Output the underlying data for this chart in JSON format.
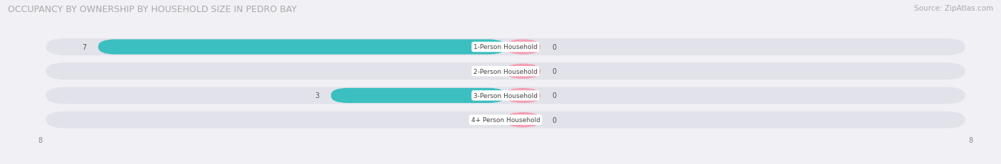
{
  "title": "OCCUPANCY BY OWNERSHIP BY HOUSEHOLD SIZE IN PEDRO BAY",
  "source": "Source: ZipAtlas.com",
  "categories": [
    "1-Person Household",
    "2-Person Household",
    "3-Person Household",
    "4+ Person Household"
  ],
  "owner_values": [
    7,
    0,
    3,
    0
  ],
  "renter_values": [
    0,
    0,
    0,
    0
  ],
  "owner_color": "#3bbfc0",
  "renter_color": "#f4a0b5",
  "bar_bg_color": "#e2e2ea",
  "xlim": [
    -8,
    8
  ],
  "title_fontsize": 9,
  "source_fontsize": 7.5,
  "bar_height": 0.62,
  "renter_stub": 0.6,
  "figsize": [
    14.06,
    2.32
  ],
  "dpi": 100
}
